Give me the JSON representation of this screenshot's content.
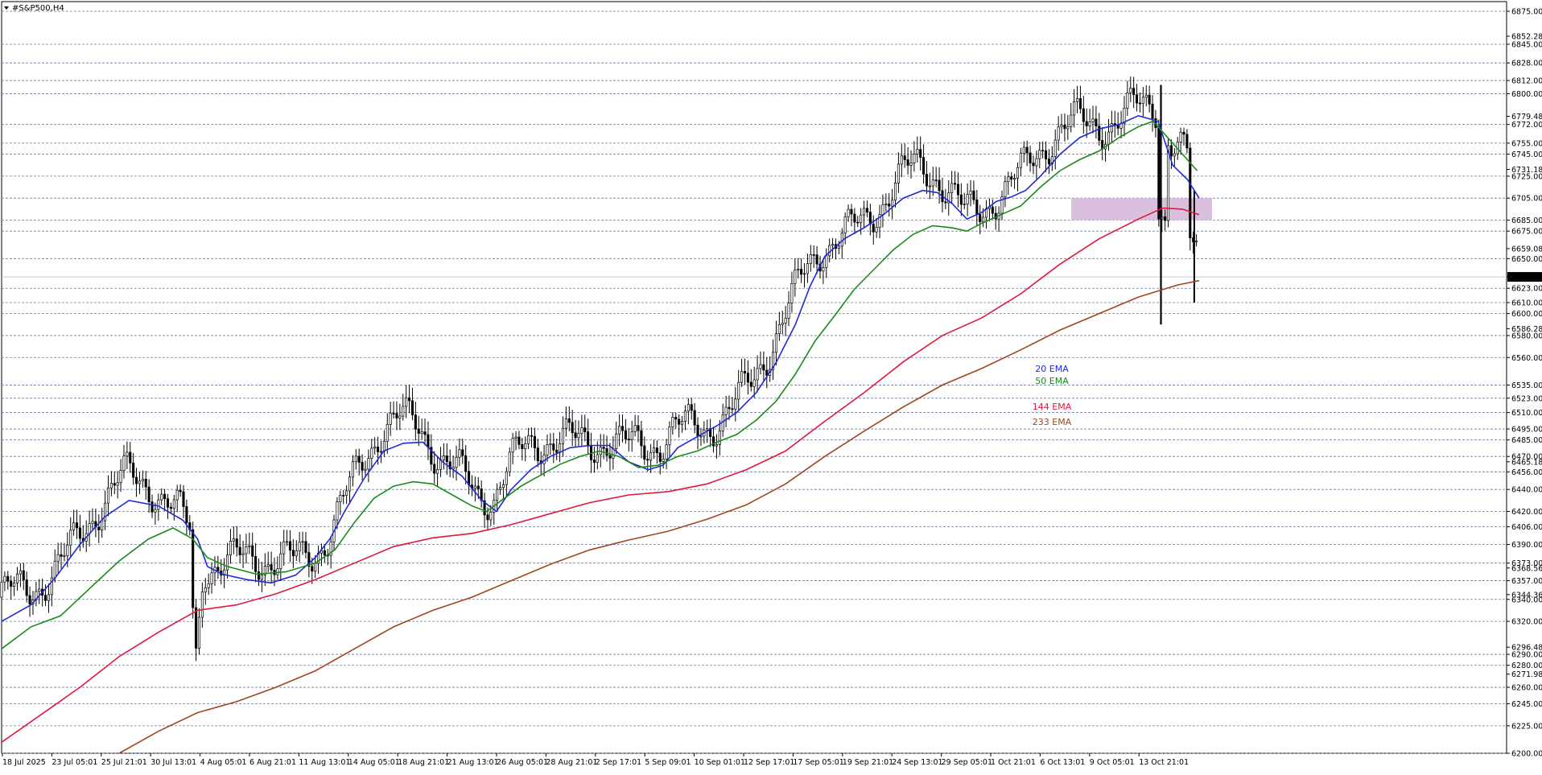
{
  "window": {
    "symbol_label": "#S&P500,H4"
  },
  "colors": {
    "ema20": "#1f2ad6",
    "ema50": "#1a8a1a",
    "ema144": "#e0183c",
    "ema233": "#a0461f",
    "zone": "#d7b8dc",
    "grid": "#6a7a9a",
    "candle": "#000000"
  },
  "chart_data": {
    "type": "candlestick",
    "title": "#S&P500,H4",
    "ylim": [
      6200,
      6875
    ],
    "grid": "horizontal-dashed",
    "legend_position": "center",
    "x_tick_labels": [
      "18 Jul 2025",
      "23 Jul 05:01",
      "25 Jul 21:01",
      "30 Jul 13:01",
      "4 Aug 05:01",
      "6 Aug 21:01",
      "11 Aug 13:01",
      "14 Aug 05:01",
      "18 Aug 21:01",
      "21 Aug 13:01",
      "26 Aug 05:01",
      "28 Aug 21:01",
      "2 Sep 17:01",
      "5 Sep 09:01",
      "10 Sep 01:01",
      "12 Sep 17:01",
      "17 Sep 05:01",
      "19 Sep 21:01",
      "24 Sep 13:01",
      "29 Sep 05:01",
      "1 Oct 21:01",
      "6 Oct 13:01",
      "9 Oct 05:01",
      "13 Oct 21:01"
    ],
    "y_tick_labels": [
      "6875.00",
      "6852.28",
      "6845.00",
      "6828.00",
      "6812.00",
      "6800.00",
      "6779.48",
      "6772.00",
      "6755.00",
      "6745.00",
      "6731.18",
      "6725.00",
      "6705.00",
      "6685.00",
      "6675.00",
      "6659.08",
      "6650.00",
      "6633.37",
      "6623.00",
      "6610.00",
      "6600.00",
      "6586.28",
      "6580.00",
      "6560.00",
      "6535.00",
      "6523.00",
      "6510.00",
      "6495.00",
      "6485.00",
      "6470.00",
      "6465.18",
      "6456.00",
      "6440.00",
      "6420.00",
      "6406.00",
      "6390.00",
      "6373.00",
      "6368.56",
      "6357.00",
      "6344.36",
      "6340.00",
      "6320.00",
      "6296.48",
      "6290.00",
      "6280.00",
      "6271.98",
      "6260.00",
      "6245.00",
      "6225.00",
      "6200.00"
    ],
    "current_price": 6633.37,
    "resistance_zone": [
      6685,
      6705
    ],
    "series": [
      {
        "name": "20 EMA",
        "color": "#1f2ad6",
        "values": [
          [
            0,
            6320
          ],
          [
            30,
            6335
          ],
          [
            55,
            6360
          ],
          [
            80,
            6390
          ],
          [
            105,
            6415
          ],
          [
            130,
            6430
          ],
          [
            160,
            6425
          ],
          [
            185,
            6412
          ],
          [
            200,
            6395
          ],
          [
            210,
            6370
          ],
          [
            225,
            6363
          ],
          [
            250,
            6358
          ],
          [
            275,
            6355
          ],
          [
            300,
            6362
          ],
          [
            320,
            6378
          ],
          [
            335,
            6395
          ],
          [
            350,
            6420
          ],
          [
            370,
            6450
          ],
          [
            390,
            6475
          ],
          [
            410,
            6482
          ],
          [
            430,
            6483
          ],
          [
            450,
            6465
          ],
          [
            470,
            6452
          ],
          [
            490,
            6430
          ],
          [
            505,
            6420
          ],
          [
            520,
            6440
          ],
          [
            540,
            6458
          ],
          [
            560,
            6470
          ],
          [
            580,
            6478
          ],
          [
            600,
            6480
          ],
          [
            620,
            6480
          ],
          [
            640,
            6465
          ],
          [
            660,
            6458
          ],
          [
            675,
            6462
          ],
          [
            690,
            6478
          ],
          [
            710,
            6488
          ],
          [
            730,
            6498
          ],
          [
            750,
            6510
          ],
          [
            770,
            6528
          ],
          [
            790,
            6555
          ],
          [
            810,
            6590
          ],
          [
            825,
            6625
          ],
          [
            840,
            6652
          ],
          [
            860,
            6668
          ],
          [
            880,
            6678
          ],
          [
            900,
            6690
          ],
          [
            920,
            6705
          ],
          [
            940,
            6712
          ],
          [
            955,
            6710
          ],
          [
            970,
            6700
          ],
          [
            985,
            6686
          ],
          [
            1000,
            6692
          ],
          [
            1015,
            6702
          ],
          [
            1030,
            6706
          ],
          [
            1045,
            6712
          ],
          [
            1060,
            6725
          ],
          [
            1080,
            6745
          ],
          [
            1100,
            6760
          ],
          [
            1120,
            6768
          ],
          [
            1140,
            6772
          ],
          [
            1160,
            6780
          ],
          [
            1180,
            6775
          ],
          [
            1195,
            6735
          ],
          [
            1210,
            6722
          ],
          [
            1222,
            6705
          ]
        ]
      },
      {
        "name": "50 EMA",
        "color": "#1a8a1a",
        "values": [
          [
            0,
            6295
          ],
          [
            30,
            6315
          ],
          [
            60,
            6325
          ],
          [
            90,
            6350
          ],
          [
            120,
            6375
          ],
          [
            150,
            6395
          ],
          [
            175,
            6405
          ],
          [
            195,
            6395
          ],
          [
            210,
            6378
          ],
          [
            230,
            6370
          ],
          [
            260,
            6363
          ],
          [
            290,
            6365
          ],
          [
            320,
            6373
          ],
          [
            340,
            6385
          ],
          [
            360,
            6410
          ],
          [
            380,
            6432
          ],
          [
            400,
            6443
          ],
          [
            420,
            6447
          ],
          [
            440,
            6445
          ],
          [
            460,
            6435
          ],
          [
            480,
            6425
          ],
          [
            495,
            6420
          ],
          [
            510,
            6430
          ],
          [
            530,
            6443
          ],
          [
            550,
            6453
          ],
          [
            570,
            6463
          ],
          [
            590,
            6470
          ],
          [
            610,
            6475
          ],
          [
            630,
            6470
          ],
          [
            650,
            6460
          ],
          [
            670,
            6462
          ],
          [
            690,
            6470
          ],
          [
            710,
            6475
          ],
          [
            730,
            6483
          ],
          [
            750,
            6490
          ],
          [
            770,
            6503
          ],
          [
            790,
            6520
          ],
          [
            810,
            6545
          ],
          [
            830,
            6575
          ],
          [
            850,
            6598
          ],
          [
            870,
            6622
          ],
          [
            890,
            6640
          ],
          [
            910,
            6658
          ],
          [
            930,
            6672
          ],
          [
            950,
            6680
          ],
          [
            970,
            6678
          ],
          [
            985,
            6675
          ],
          [
            1000,
            6682
          ],
          [
            1020,
            6690
          ],
          [
            1040,
            6698
          ],
          [
            1060,
            6715
          ],
          [
            1080,
            6730
          ],
          [
            1100,
            6740
          ],
          [
            1120,
            6748
          ],
          [
            1140,
            6760
          ],
          [
            1160,
            6770
          ],
          [
            1175,
            6775
          ],
          [
            1190,
            6760
          ],
          [
            1205,
            6745
          ],
          [
            1220,
            6730
          ]
        ]
      },
      {
        "name": "144 EMA",
        "color": "#e0183c",
        "values": [
          [
            0,
            6210
          ],
          [
            40,
            6235
          ],
          [
            80,
            6260
          ],
          [
            120,
            6288
          ],
          [
            160,
            6310
          ],
          [
            200,
            6330
          ],
          [
            240,
            6335
          ],
          [
            280,
            6345
          ],
          [
            320,
            6358
          ],
          [
            360,
            6373
          ],
          [
            400,
            6388
          ],
          [
            440,
            6396
          ],
          [
            480,
            6400
          ],
          [
            520,
            6408
          ],
          [
            560,
            6418
          ],
          [
            600,
            6428
          ],
          [
            640,
            6435
          ],
          [
            680,
            6438
          ],
          [
            720,
            6445
          ],
          [
            760,
            6458
          ],
          [
            800,
            6475
          ],
          [
            840,
            6502
          ],
          [
            880,
            6528
          ],
          [
            920,
            6556
          ],
          [
            960,
            6580
          ],
          [
            1000,
            6596
          ],
          [
            1040,
            6618
          ],
          [
            1080,
            6645
          ],
          [
            1120,
            6668
          ],
          [
            1160,
            6686
          ],
          [
            1185,
            6696
          ],
          [
            1205,
            6695
          ],
          [
            1222,
            6690
          ]
        ]
      },
      {
        "name": "233 EMA",
        "color": "#a0461f",
        "values": [
          [
            120,
            6200
          ],
          [
            160,
            6220
          ],
          [
            200,
            6237
          ],
          [
            240,
            6247
          ],
          [
            280,
            6260
          ],
          [
            320,
            6275
          ],
          [
            360,
            6295
          ],
          [
            400,
            6315
          ],
          [
            440,
            6330
          ],
          [
            480,
            6342
          ],
          [
            520,
            6357
          ],
          [
            560,
            6372
          ],
          [
            600,
            6385
          ],
          [
            640,
            6394
          ],
          [
            680,
            6402
          ],
          [
            720,
            6413
          ],
          [
            760,
            6426
          ],
          [
            800,
            6445
          ],
          [
            840,
            6470
          ],
          [
            880,
            6493
          ],
          [
            920,
            6515
          ],
          [
            960,
            6535
          ],
          [
            1000,
            6550
          ],
          [
            1040,
            6567
          ],
          [
            1080,
            6585
          ],
          [
            1120,
            6600
          ],
          [
            1160,
            6615
          ],
          [
            1200,
            6626
          ],
          [
            1222,
            6630
          ]
        ]
      }
    ]
  }
}
